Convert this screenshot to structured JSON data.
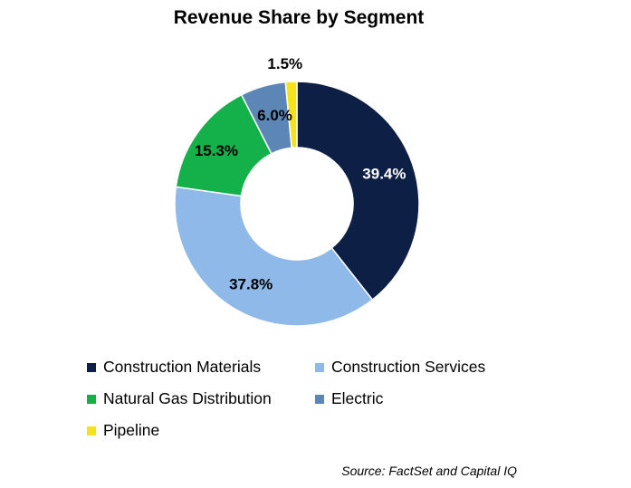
{
  "chart_data": {
    "type": "pie",
    "donut": true,
    "title": "Revenue Share by Segment",
    "series": [
      {
        "name": "Construction Materials",
        "value": 39.4,
        "label": "39.4%",
        "color": "#0d1f45",
        "label_color": "#ffffff"
      },
      {
        "name": "Construction Services",
        "value": 37.8,
        "label": "37.8%",
        "color": "#8eb9e8",
        "label_color": "#000000"
      },
      {
        "name": "Natural Gas Distribution",
        "value": 15.3,
        "label": "15.3%",
        "color": "#14b04a",
        "label_color": "#000000"
      },
      {
        "name": "Electric",
        "value": 6.0,
        "label": "6.0%",
        "color": "#5b86b5",
        "label_color": "#000000"
      },
      {
        "name": "Pipeline",
        "value": 1.5,
        "label": "1.5%",
        "color": "#f5e21a",
        "label_color": "#000000"
      }
    ],
    "legend_position": "bottom",
    "source": "Source: FactSet and Capital IQ"
  }
}
